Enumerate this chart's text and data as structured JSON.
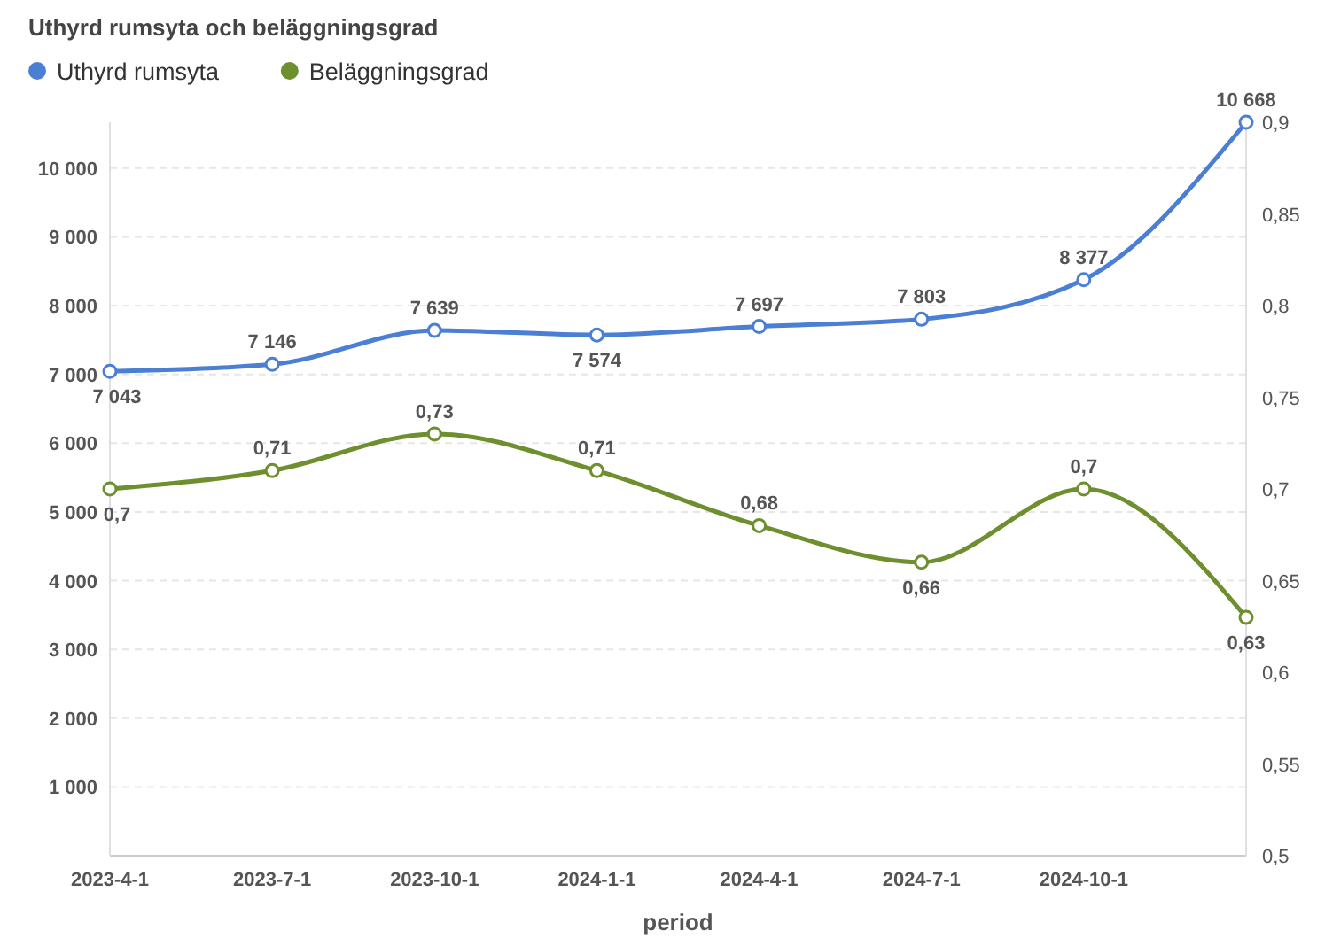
{
  "chart_data": {
    "type": "line",
    "title": "Uthyrd rumsyta och beläggningsgrad",
    "xlabel": "period",
    "categories": [
      "2023-4-1",
      "2023-7-1",
      "2023-10-1",
      "2024-1-1",
      "2024-4-1",
      "2024-7-1",
      "2024-10-1",
      null
    ],
    "series": [
      {
        "name": "Uthyrd rumsyta",
        "color": "#4a7fd4",
        "values": [
          7043,
          7146,
          7639,
          7574,
          7697,
          7803,
          8377,
          10668
        ],
        "value_labels": [
          "7 043",
          "7 146",
          "7 639",
          "7 574",
          "7 697",
          "7 803",
          "8 377",
          "10 668"
        ]
      },
      {
        "name": "Beläggningsgrad",
        "color": "#6e8f2e",
        "axis": "y2",
        "values": [
          0.7,
          0.71,
          0.73,
          0.71,
          0.68,
          0.66,
          0.7,
          0.63
        ],
        "value_labels": [
          "0,7",
          "0,71",
          "0,73",
          "0,71",
          "0,68",
          "0,66",
          "0,7",
          "0,63"
        ]
      }
    ],
    "ylim": [
      0,
      10668
    ],
    "yticks": [
      {
        "value": 0,
        "label": null
      },
      {
        "value": 1000,
        "label": "1 000"
      },
      {
        "value": 2000,
        "label": "2 000"
      },
      {
        "value": 3000,
        "label": "3 000"
      },
      {
        "value": 4000,
        "label": "4 000"
      },
      {
        "value": 5000,
        "label": "5 000"
      },
      {
        "value": 6000,
        "label": "6 000"
      },
      {
        "value": 7000,
        "label": "7 000"
      },
      {
        "value": 8000,
        "label": "8 000"
      },
      {
        "value": 9000,
        "label": "9 000"
      },
      {
        "value": 10000,
        "label": "10 000"
      }
    ],
    "y2lim": [
      0.5,
      0.9
    ],
    "y2ticks": [
      {
        "value": 0.5,
        "label": "0,5"
      },
      {
        "value": 0.55,
        "label": "0,55"
      },
      {
        "value": 0.6,
        "label": "0,6"
      },
      {
        "value": 0.65,
        "label": "0,65"
      },
      {
        "value": 0.7,
        "label": "0,7"
      },
      {
        "value": 0.75,
        "label": "0,75"
      },
      {
        "value": 0.8,
        "label": "0,8"
      },
      {
        "value": 0.85,
        "label": "0,85"
      },
      {
        "value": 0.9,
        "label": "0,9"
      }
    ],
    "grid": "y",
    "legend": "top left",
    "marker": "circle",
    "line_style": "solid"
  }
}
